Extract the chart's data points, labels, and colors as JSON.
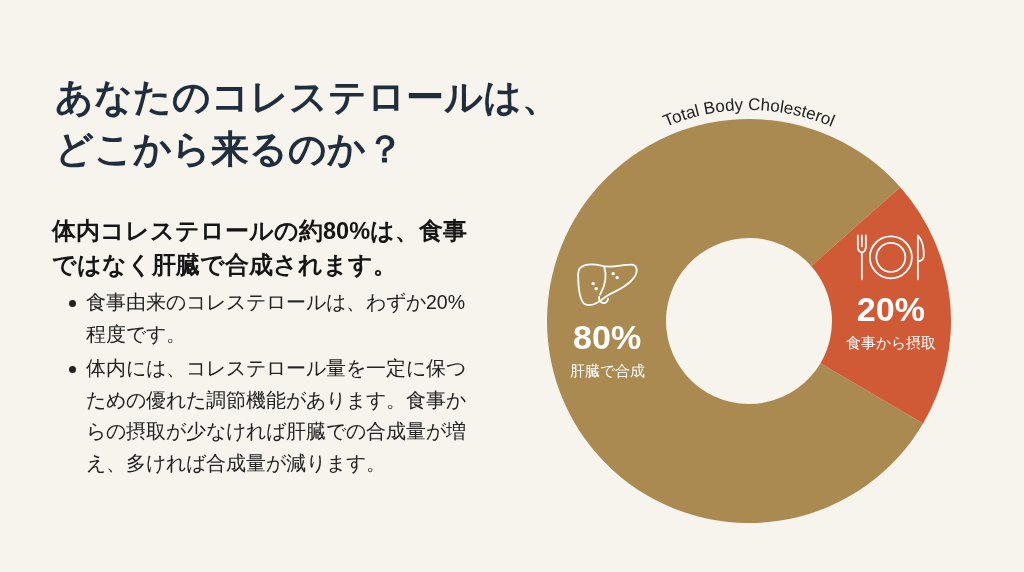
{
  "chart_data": {
    "type": "donut",
    "title": "あなたのコレステロールは、どこから来るのか？",
    "subtitle": "体内コレステロールの約80%は、食事ではなく肝臓で合成されます。",
    "annotations": [
      "食事由来のコレステロールは、わずか20%程度です。",
      "体内には、コレステロール量を一定に保つための優れた調節機能があります。食事からの摂取が少なければ肝臓での合成量が増え、多ければ合成量が減ります。",
      "Total Body Cholesterol"
    ],
    "categories": [
      "肝臓で合成",
      "食事から摂取"
    ],
    "values": [
      80,
      20
    ],
    "colors": [
      "#ab8a52",
      "#cf5a35"
    ],
    "value_labels": [
      "80%",
      "20%"
    ]
  }
}
